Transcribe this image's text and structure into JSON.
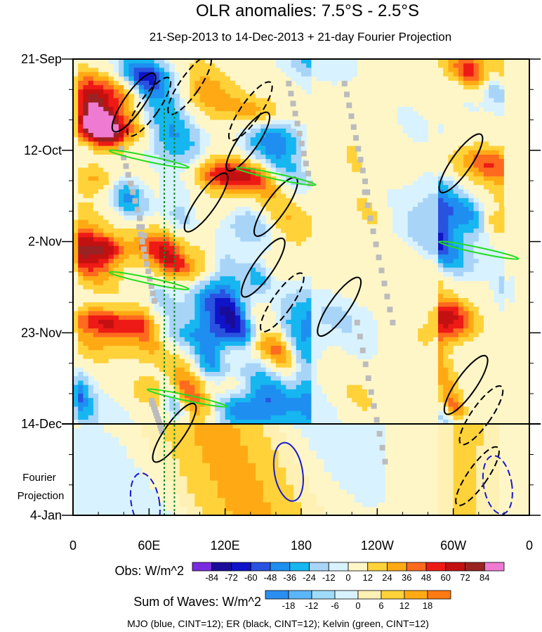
{
  "chart_data": {
    "type": "heatmap",
    "title": "OLR anomalies: 7.5°S - 2.5°S",
    "subtitle": "21-Sep-2013 to 14-Dec-2013 + 21-day Fourier Projection",
    "x_tick_labels": [
      "0",
      "60E",
      "120E",
      "180",
      "120W",
      "60W",
      "0"
    ],
    "x_tick_values_deg": [
      0,
      60,
      120,
      180,
      240,
      300,
      360
    ],
    "xlim_deg": [
      0,
      360
    ],
    "y_tick_labels": [
      "21-Sep",
      "12-Oct",
      "2-Nov",
      "23-Nov",
      "14-Dec",
      "4-Jan"
    ],
    "y_tick_dates": [
      "2013-09-21",
      "2013-10-12",
      "2013-11-02",
      "2013-11-23",
      "2013-12-14",
      "2014-01-04"
    ],
    "ylim": [
      "2013-09-21",
      "2014-01-04"
    ],
    "y_reversed": true,
    "projection_start": "2013-12-14",
    "projection_label": "Fourier\nProjection",
    "reference_lines_lon_deg": [
      72,
      80
    ],
    "obs_colorbar": {
      "label": "Obs: W/m^2",
      "ticks": [
        "-84",
        "-72",
        "-60",
        "-48",
        "-36",
        "-24",
        "-12",
        "0",
        "12",
        "24",
        "36",
        "48",
        "60",
        "72",
        "84"
      ],
      "colors": [
        "#7a2be0",
        "#1a0c9a",
        "#0f14c8",
        "#2a52e0",
        "#1e8ef0",
        "#16b6f0",
        "#a8d4f8",
        "#d8f2ff",
        "#fff6c8",
        "#ffd23a",
        "#ffaa14",
        "#ff6a1e",
        "#ee1a16",
        "#c41010",
        "#9b2222",
        "#ee7ad2"
      ]
    },
    "waves_colorbar": {
      "label": "Sum of Waves: W/m^2",
      "ticks": [
        "-18",
        "-12",
        "-6",
        "0",
        "6",
        "12",
        "18"
      ],
      "colors": [
        "#2a8ef0",
        "#5ab6f6",
        "#9edcfa",
        "#d8f2ff",
        "#fff1b4",
        "#ffd23a",
        "#ffaa14",
        "#ff7a14"
      ]
    },
    "contours_legend": "MJO (blue, CINT=12); ER (black, CINT=12); Kelvin (green, CINT=12)",
    "series": [
      {
        "name": "MJO",
        "color": "#1a1acc",
        "cint": 12
      },
      {
        "name": "ER",
        "color": "#000000",
        "cint": 12
      },
      {
        "name": "Kelvin",
        "color": "#22dd22",
        "cint": 12
      }
    ],
    "wave_features": [
      {
        "wave": "ER",
        "lon": 48,
        "date": "2013-10-01",
        "sign": "positive"
      },
      {
        "wave": "ER",
        "lon": 60,
        "date": "2013-10-02",
        "sign": "negative"
      },
      {
        "wave": "ER",
        "lon": 92,
        "date": "2013-09-27",
        "sign": "negative"
      },
      {
        "wave": "ER",
        "lon": 140,
        "date": "2013-10-03",
        "sign": "negative"
      },
      {
        "wave": "ER",
        "lon": 138,
        "date": "2013-10-10",
        "sign": "positive"
      },
      {
        "wave": "ER",
        "lon": 105,
        "date": "2013-10-24",
        "sign": "positive"
      },
      {
        "wave": "ER",
        "lon": 160,
        "date": "2013-10-25",
        "sign": "positive"
      },
      {
        "wave": "ER",
        "lon": 150,
        "date": "2013-11-08",
        "sign": "positive"
      },
      {
        "wave": "ER",
        "lon": 165,
        "date": "2013-11-16",
        "sign": "negative"
      },
      {
        "wave": "ER",
        "lon": 210,
        "date": "2013-11-17",
        "sign": "positive"
      },
      {
        "wave": "ER",
        "lon": 306,
        "date": "2013-10-15",
        "sign": "positive"
      },
      {
        "wave": "ER",
        "lon": 310,
        "date": "2013-12-05",
        "sign": "positive"
      },
      {
        "wave": "ER",
        "lon": 322,
        "date": "2013-12-12",
        "sign": "negative"
      },
      {
        "wave": "ER",
        "lon": 319,
        "date": "2013-12-26",
        "sign": "negative"
      },
      {
        "wave": "ER",
        "lon": 80,
        "date": "2013-12-16",
        "sign": "positive"
      },
      {
        "wave": "MJO",
        "lon": 170,
        "date": "2013-12-25",
        "sign": "positive"
      },
      {
        "wave": "MJO",
        "lon": 57,
        "date": "2014-01-01",
        "sign": "negative"
      },
      {
        "wave": "MJO",
        "lon": 335,
        "date": "2013-12-28",
        "sign": "negative"
      },
      {
        "wave": "Kelvin",
        "lon": 60,
        "date": "2013-10-14",
        "sign": "positive"
      },
      {
        "wave": "Kelvin",
        "lon": 160,
        "date": "2013-10-18",
        "sign": "positive"
      },
      {
        "wave": "Kelvin",
        "lon": 60,
        "date": "2013-11-11",
        "sign": "positive"
      },
      {
        "wave": "Kelvin",
        "lon": 90,
        "date": "2013-12-08",
        "sign": "positive"
      },
      {
        "wave": "Kelvin",
        "lon": 320,
        "date": "2013-11-04",
        "sign": "positive"
      }
    ]
  }
}
